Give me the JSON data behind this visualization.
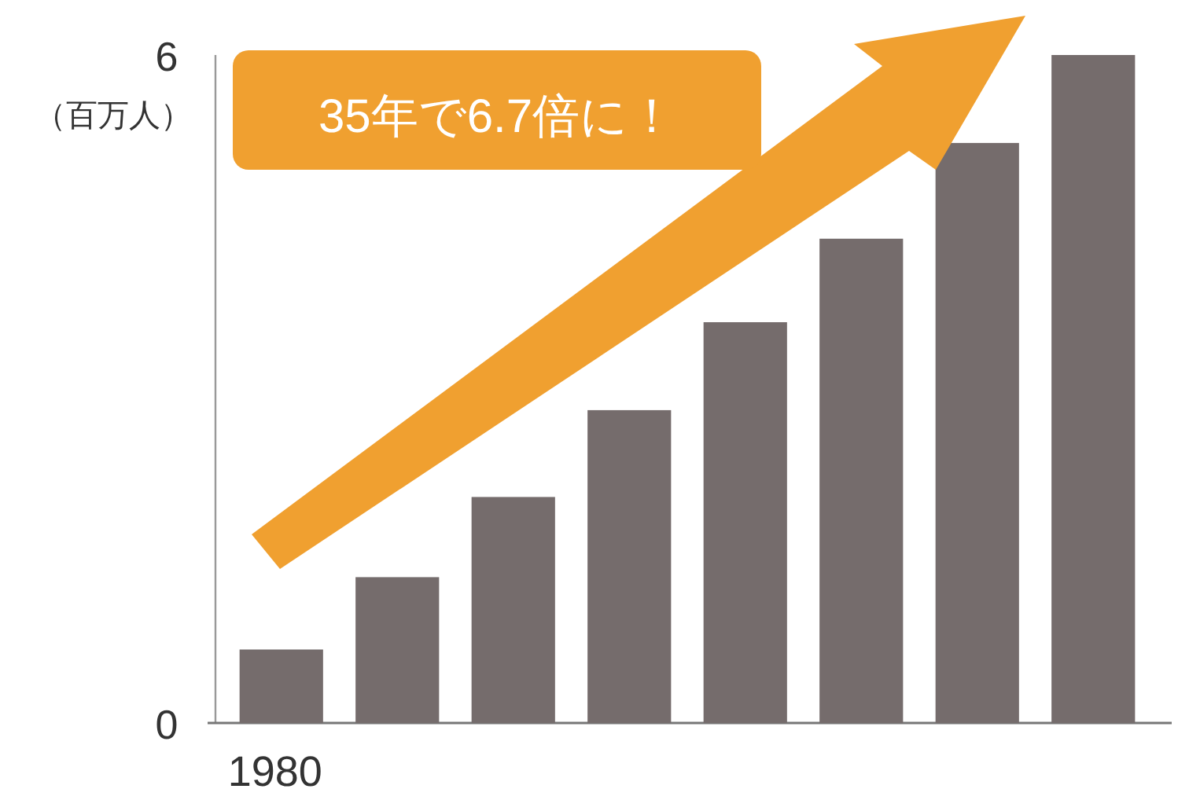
{
  "chart_data": {
    "type": "bar",
    "ylabel": "（百万人）",
    "categories": [
      "1980",
      null,
      null,
      null,
      null,
      null,
      null,
      null
    ],
    "values": [
      0.66,
      1.31,
      2.03,
      2.81,
      3.6,
      4.35,
      5.21,
      6.0
    ],
    "color": "#756c6c",
    "ylim": [
      0,
      6
    ],
    "yticks": [
      0,
      6
    ],
    "annotations": [
      "35年で6.7倍に！"
    ]
  }
}
